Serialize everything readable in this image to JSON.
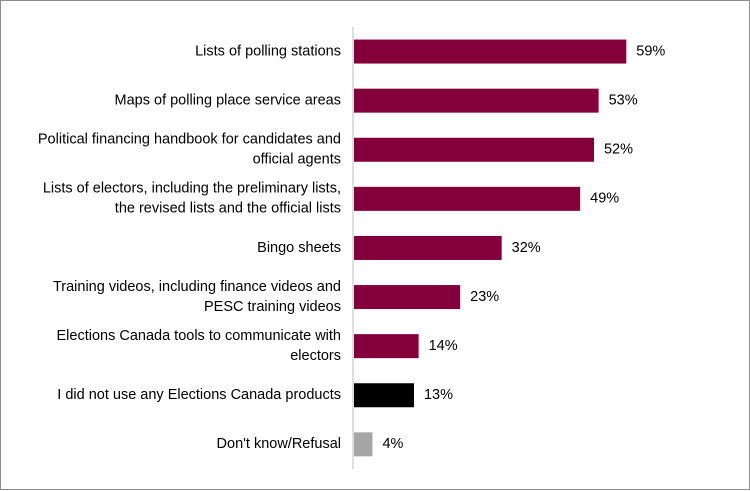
{
  "chart_data": {
    "type": "bar",
    "orientation": "horizontal",
    "title": "",
    "xlabel": "",
    "ylabel": "",
    "xlim": [
      0,
      100
    ],
    "grid": false,
    "legend": "none",
    "value_suffix": "%",
    "categories": [
      "Lists of polling stations",
      "Maps of polling place service areas",
      "Political financing handbook for candidates and official agents",
      "Lists of electors, including the preliminary lists, the revised lists and the official lists",
      "Bingo sheets",
      "Training videos, including finance videos and PESC training videos",
      "Elections Canada tools to communicate with electors",
      "I did not use any Elections Canada products",
      "Don't know/Refusal"
    ],
    "category_lines": [
      [
        "Lists of polling stations"
      ],
      [
        "Maps of polling place service areas"
      ],
      [
        "Political financing handbook for candidates and",
        "official agents"
      ],
      [
        "Lists of electors, including the preliminary lists,",
        "the revised lists and the official lists"
      ],
      [
        "Bingo sheets"
      ],
      [
        "Training videos, including finance videos and",
        "PESC training videos"
      ],
      [
        "Elections Canada tools to communicate with",
        "electors"
      ],
      [
        "I did not use any Elections Canada products"
      ],
      [
        "Don't know/Refusal"
      ]
    ],
    "values": [
      59,
      53,
      52,
      49,
      32,
      23,
      14,
      13,
      4
    ],
    "value_labels": [
      "59%",
      "53%",
      "52%",
      "49%",
      "32%",
      "23%",
      "14%",
      "13%",
      "4%"
    ],
    "bar_colors": [
      "#83003a",
      "#83003a",
      "#83003a",
      "#83003a",
      "#83003a",
      "#83003a",
      "#83003a",
      "#000000",
      "#a6a6a6"
    ]
  }
}
